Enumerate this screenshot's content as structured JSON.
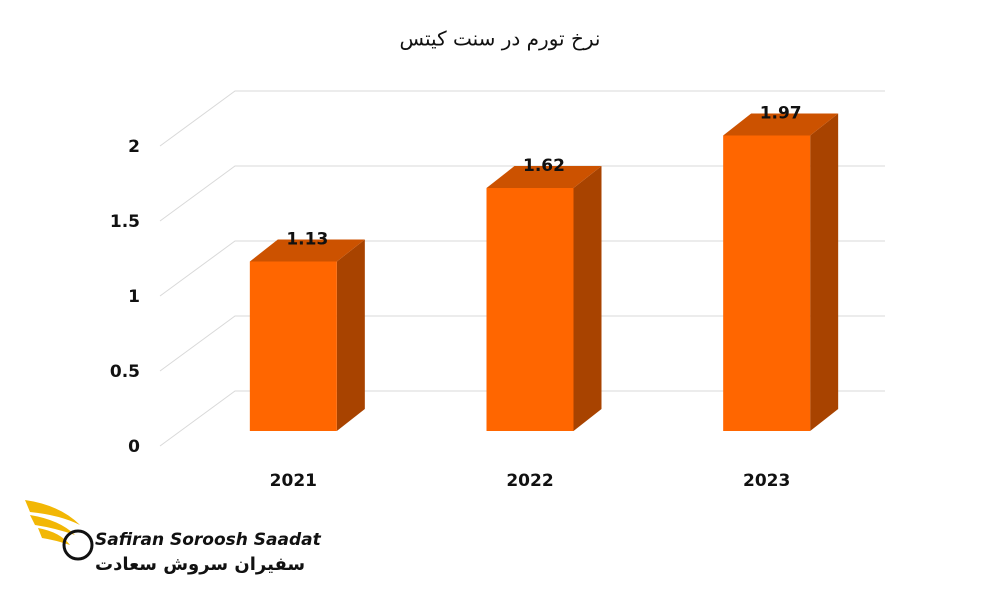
{
  "chart_data": {
    "type": "bar3d",
    "title": "نرخ تورم در سنت کیتس",
    "categories": [
      "2021",
      "2022",
      "2023"
    ],
    "values": [
      1.13,
      1.62,
      1.97
    ],
    "color": "#ff6600",
    "ylim": [
      0,
      2
    ],
    "yticks": [
      0,
      0.5,
      1,
      1.5,
      2
    ],
    "grid": true
  },
  "logo": {
    "name_en": "Safiran Soroosh Saadat",
    "name_fa": "سفیران سروش سعادت"
  }
}
